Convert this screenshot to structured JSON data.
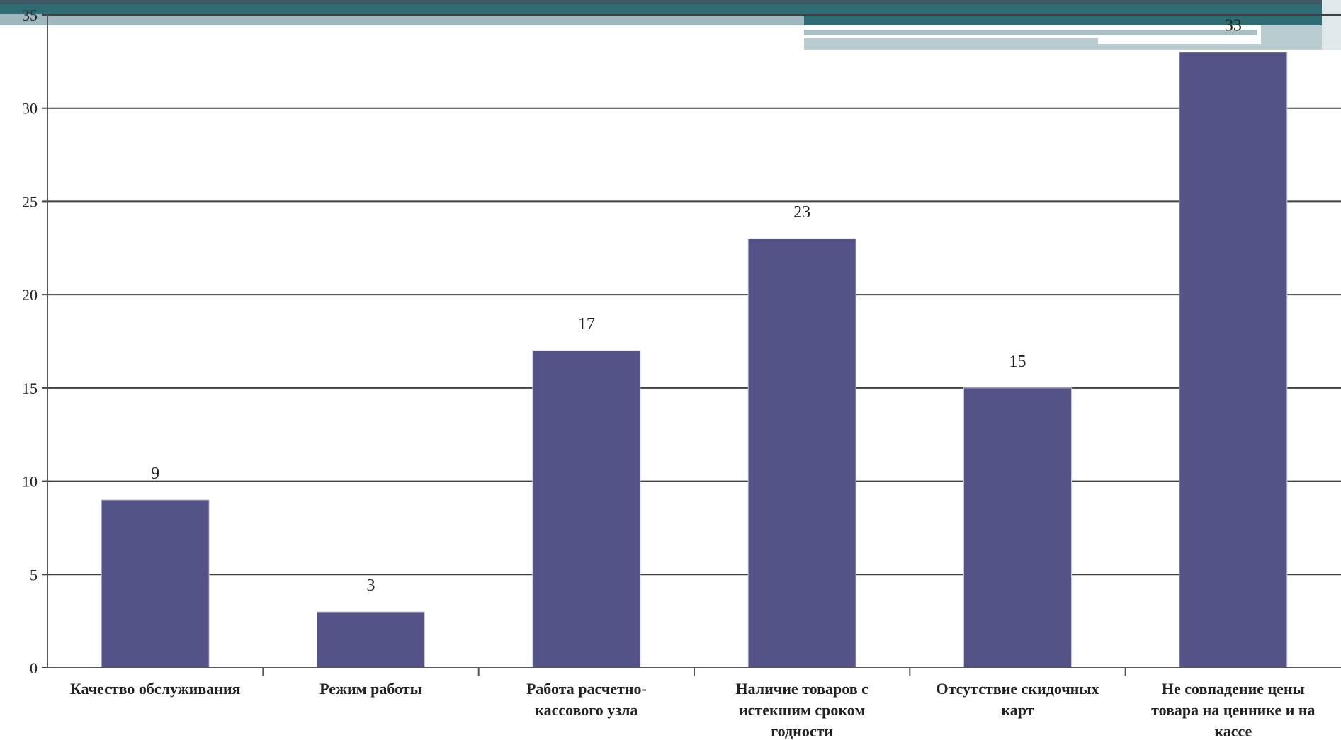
{
  "chart_data": {
    "type": "bar",
    "categories": [
      "Качество обслуживания",
      "Режим работы",
      "Работа расчетно-кассового узла",
      "Наличие товаров с истекшим сроком годности",
      "Отсутствие скидочных карт",
      "Не совпадение цены товара на ценнике и на кассе"
    ],
    "category_lines": [
      [
        "Качество обслуживания"
      ],
      [
        "Режим работы"
      ],
      [
        "Работа расчетно-",
        "кассового узла"
      ],
      [
        "Наличие товаров с",
        "истекшим сроком",
        "годности"
      ],
      [
        "Отсутствие скидочных",
        "карт"
      ],
      [
        "Не совпадение цены",
        "товара на ценнике и на",
        "кассе"
      ]
    ],
    "values": [
      9,
      3,
      17,
      23,
      15,
      33
    ],
    "ylim": [
      0,
      35
    ],
    "yticks": [
      0,
      5,
      10,
      15,
      20,
      25,
      30,
      35
    ],
    "grid": true,
    "bar_color": "#535388",
    "gridline_color": "#404040",
    "title": "",
    "xlabel": "",
    "ylabel": ""
  }
}
